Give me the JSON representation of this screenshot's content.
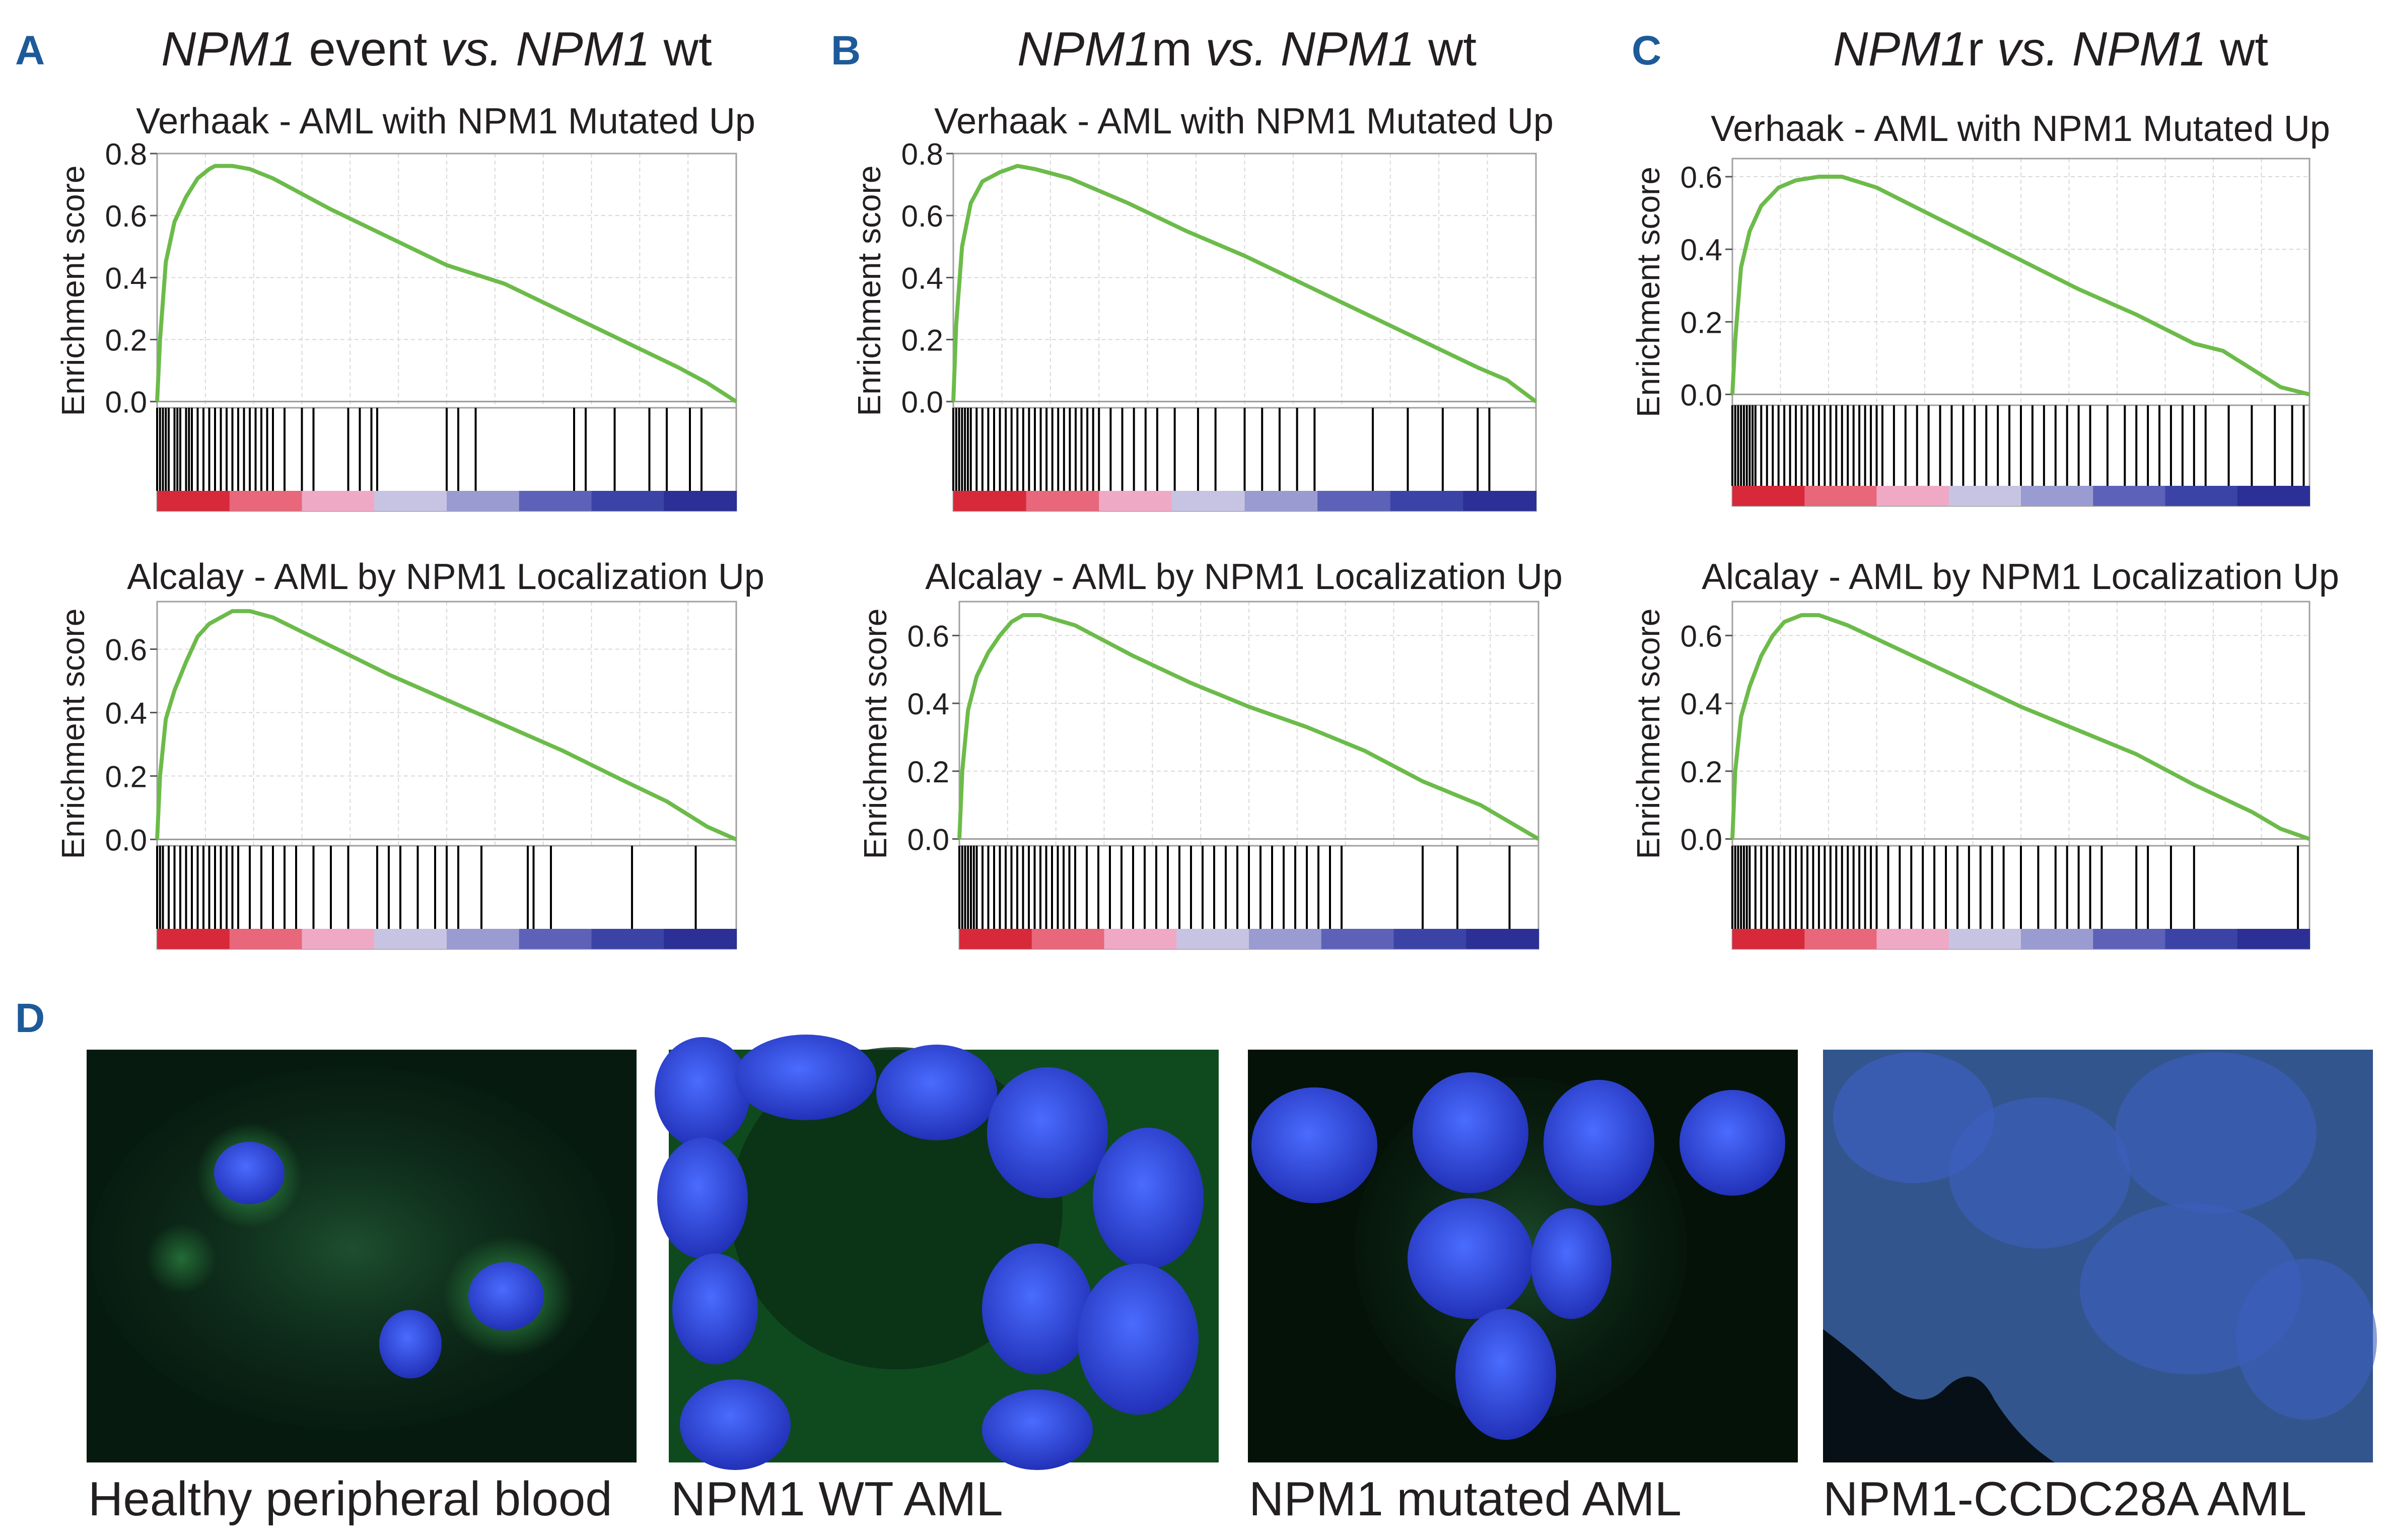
{
  "panels": [
    {
      "letter": "A",
      "title_italic_1": "NPM1",
      "title_plain_1": " event ",
      "title_italic_2": "vs. NPM1",
      "title_plain_2": " wt"
    },
    {
      "letter": "B",
      "title_italic_1": "NPM1",
      "title_plain_1": "m ",
      "title_italic_2": "vs. NPM1",
      "title_plain_2": " wt"
    },
    {
      "letter": "C",
      "title_italic_1": "NPM1",
      "title_plain_1": "r ",
      "title_italic_2": "vs. NPM1",
      "title_plain_2": " wt"
    }
  ],
  "chart_data": [
    {
      "type": "line",
      "panel": "A",
      "title": "Verhaak - AML with NPM1 Mutated Up",
      "ylabel": "Enrichment score",
      "ylim": [
        -0.02,
        0.8
      ],
      "yticks": [
        "0.0",
        "0.2",
        "0.4",
        "0.6",
        "0.8"
      ],
      "ytick_values": [
        0,
        0.2,
        0.4,
        0.6,
        0.8
      ],
      "x": [
        0,
        0.005,
        0.015,
        0.03,
        0.05,
        0.07,
        0.09,
        0.1,
        0.13,
        0.16,
        0.2,
        0.3,
        0.4,
        0.5,
        0.6,
        0.7,
        0.8,
        0.9,
        0.95,
        1.0
      ],
      "y": [
        0,
        0.2,
        0.45,
        0.58,
        0.66,
        0.72,
        0.75,
        0.76,
        0.76,
        0.75,
        0.72,
        0.62,
        0.53,
        0.44,
        0.38,
        0.29,
        0.2,
        0.11,
        0.06,
        0
      ],
      "hits": [
        0,
        0.005,
        0.01,
        0.015,
        0.02,
        0.03,
        0.035,
        0.04,
        0.05,
        0.055,
        0.06,
        0.07,
        0.08,
        0.09,
        0.1,
        0.11,
        0.12,
        0.13,
        0.14,
        0.15,
        0.16,
        0.17,
        0.18,
        0.19,
        0.2,
        0.22,
        0.25,
        0.27,
        0.33,
        0.35,
        0.37,
        0.38,
        0.5,
        0.52,
        0.55,
        0.72,
        0.74,
        0.79,
        0.85,
        0.88,
        0.92,
        0.94
      ]
    },
    {
      "type": "line",
      "panel": "A",
      "title": "Alcalay - AML by NPM1 Localization Up",
      "ylabel": "Enrichment score",
      "ylim": [
        -0.02,
        0.75
      ],
      "yticks": [
        "0.0",
        "0.2",
        "0.4",
        "0.6"
      ],
      "ytick_values": [
        0,
        0.2,
        0.4,
        0.6
      ],
      "x": [
        0,
        0.005,
        0.015,
        0.03,
        0.05,
        0.07,
        0.09,
        0.11,
        0.13,
        0.16,
        0.2,
        0.3,
        0.4,
        0.5,
        0.6,
        0.7,
        0.8,
        0.88,
        0.95,
        1.0
      ],
      "y": [
        0,
        0.2,
        0.38,
        0.47,
        0.56,
        0.64,
        0.68,
        0.7,
        0.72,
        0.72,
        0.7,
        0.61,
        0.52,
        0.44,
        0.36,
        0.28,
        0.19,
        0.12,
        0.04,
        0
      ],
      "hits": [
        0,
        0.005,
        0.01,
        0.02,
        0.03,
        0.04,
        0.05,
        0.06,
        0.07,
        0.08,
        0.09,
        0.1,
        0.11,
        0.12,
        0.13,
        0.14,
        0.16,
        0.18,
        0.2,
        0.22,
        0.24,
        0.27,
        0.3,
        0.33,
        0.38,
        0.4,
        0.42,
        0.45,
        0.48,
        0.5,
        0.52,
        0.56,
        0.64,
        0.65,
        0.68,
        0.82,
        0.93
      ]
    },
    {
      "type": "line",
      "panel": "B",
      "title": "Verhaak - AML with NPM1 Mutated Up",
      "ylabel": "Enrichment score",
      "ylim": [
        -0.02,
        0.8
      ],
      "yticks": [
        "0.0",
        "0.2",
        "0.4",
        "0.6",
        "0.8"
      ],
      "ytick_values": [
        0,
        0.2,
        0.4,
        0.6,
        0.8
      ],
      "x": [
        0,
        0.005,
        0.015,
        0.03,
        0.05,
        0.08,
        0.11,
        0.14,
        0.2,
        0.3,
        0.4,
        0.5,
        0.6,
        0.7,
        0.8,
        0.9,
        0.95,
        1.0
      ],
      "y": [
        0,
        0.25,
        0.5,
        0.64,
        0.71,
        0.74,
        0.76,
        0.75,
        0.72,
        0.64,
        0.55,
        0.47,
        0.38,
        0.29,
        0.2,
        0.11,
        0.07,
        0
      ],
      "hits": [
        0,
        0.005,
        0.01,
        0.015,
        0.02,
        0.025,
        0.03,
        0.04,
        0.05,
        0.06,
        0.07,
        0.08,
        0.09,
        0.1,
        0.11,
        0.12,
        0.13,
        0.14,
        0.15,
        0.16,
        0.17,
        0.18,
        0.19,
        0.2,
        0.21,
        0.22,
        0.23,
        0.24,
        0.25,
        0.27,
        0.29,
        0.31,
        0.33,
        0.35,
        0.38,
        0.42,
        0.45,
        0.5,
        0.53,
        0.56,
        0.59,
        0.62,
        0.72,
        0.78,
        0.84,
        0.9,
        0.92
      ]
    },
    {
      "type": "line",
      "panel": "B",
      "title": "Alcalay - AML by NPM1 Localization Up",
      "ylabel": "Enrichment score",
      "ylim": [
        -0.02,
        0.7
      ],
      "yticks": [
        "0.0",
        "0.2",
        "0.4",
        "0.6"
      ],
      "ytick_values": [
        0,
        0.2,
        0.4,
        0.6
      ],
      "x": [
        0,
        0.005,
        0.015,
        0.03,
        0.05,
        0.07,
        0.09,
        0.11,
        0.14,
        0.2,
        0.3,
        0.4,
        0.5,
        0.6,
        0.7,
        0.8,
        0.9,
        0.95,
        1.0
      ],
      "y": [
        0,
        0.2,
        0.38,
        0.48,
        0.55,
        0.6,
        0.64,
        0.66,
        0.66,
        0.63,
        0.54,
        0.46,
        0.39,
        0.33,
        0.26,
        0.17,
        0.1,
        0.05,
        0
      ],
      "hits": [
        0,
        0.005,
        0.01,
        0.015,
        0.02,
        0.025,
        0.03,
        0.04,
        0.05,
        0.06,
        0.07,
        0.08,
        0.09,
        0.1,
        0.11,
        0.12,
        0.13,
        0.14,
        0.15,
        0.16,
        0.17,
        0.18,
        0.19,
        0.2,
        0.22,
        0.24,
        0.26,
        0.28,
        0.3,
        0.32,
        0.34,
        0.36,
        0.38,
        0.4,
        0.42,
        0.44,
        0.46,
        0.48,
        0.5,
        0.52,
        0.54,
        0.56,
        0.58,
        0.6,
        0.62,
        0.64,
        0.66,
        0.8,
        0.86,
        0.95
      ]
    },
    {
      "type": "line",
      "panel": "C",
      "title": "Verhaak - AML with NPM1 Mutated Up",
      "ylabel": "Enrichment score",
      "ylim": [
        -0.03,
        0.65
      ],
      "yticks": [
        "0.0",
        "0.2",
        "0.4",
        "0.6"
      ],
      "ytick_values": [
        0,
        0.2,
        0.4,
        0.6
      ],
      "x": [
        0,
        0.005,
        0.015,
        0.03,
        0.05,
        0.08,
        0.11,
        0.15,
        0.19,
        0.25,
        0.3,
        0.4,
        0.5,
        0.6,
        0.7,
        0.75,
        0.8,
        0.85,
        0.9,
        0.95,
        1.0
      ],
      "y": [
        0,
        0.15,
        0.35,
        0.45,
        0.52,
        0.57,
        0.59,
        0.6,
        0.6,
        0.57,
        0.53,
        0.45,
        0.37,
        0.29,
        0.22,
        0.18,
        0.14,
        0.12,
        0.07,
        0.02,
        0
      ],
      "hits": [
        0,
        0.005,
        0.01,
        0.015,
        0.02,
        0.025,
        0.03,
        0.035,
        0.04,
        0.05,
        0.06,
        0.07,
        0.08,
        0.09,
        0.1,
        0.11,
        0.12,
        0.13,
        0.14,
        0.15,
        0.16,
        0.17,
        0.18,
        0.19,
        0.2,
        0.21,
        0.22,
        0.23,
        0.24,
        0.25,
        0.26,
        0.28,
        0.3,
        0.32,
        0.34,
        0.36,
        0.38,
        0.4,
        0.42,
        0.44,
        0.46,
        0.48,
        0.5,
        0.52,
        0.54,
        0.56,
        0.58,
        0.6,
        0.62,
        0.65,
        0.68,
        0.7,
        0.72,
        0.74,
        0.76,
        0.78,
        0.8,
        0.82,
        0.86,
        0.9,
        0.94,
        0.97,
        0.99
      ]
    },
    {
      "type": "line",
      "panel": "C",
      "title": "Alcalay - AML by NPM1 Localization Up",
      "ylabel": "Enrichment score",
      "ylim": [
        -0.02,
        0.7
      ],
      "yticks": [
        "0.0",
        "0.2",
        "0.4",
        "0.6"
      ],
      "ytick_values": [
        0,
        0.2,
        0.4,
        0.6
      ],
      "x": [
        0,
        0.005,
        0.015,
        0.03,
        0.05,
        0.07,
        0.09,
        0.12,
        0.15,
        0.2,
        0.3,
        0.4,
        0.5,
        0.6,
        0.7,
        0.8,
        0.9,
        0.95,
        1.0
      ],
      "y": [
        0,
        0.2,
        0.36,
        0.45,
        0.54,
        0.6,
        0.64,
        0.66,
        0.66,
        0.63,
        0.55,
        0.47,
        0.39,
        0.32,
        0.25,
        0.16,
        0.08,
        0.03,
        0
      ],
      "hits": [
        0,
        0.005,
        0.01,
        0.015,
        0.02,
        0.025,
        0.03,
        0.04,
        0.05,
        0.06,
        0.07,
        0.08,
        0.09,
        0.1,
        0.11,
        0.12,
        0.13,
        0.14,
        0.15,
        0.16,
        0.17,
        0.18,
        0.19,
        0.2,
        0.21,
        0.22,
        0.23,
        0.24,
        0.25,
        0.27,
        0.29,
        0.31,
        0.33,
        0.35,
        0.37,
        0.39,
        0.41,
        0.43,
        0.45,
        0.47,
        0.5,
        0.53,
        0.56,
        0.58,
        0.6,
        0.62,
        0.64,
        0.7,
        0.72,
        0.76,
        0.8,
        0.98
      ]
    }
  ],
  "panel_d": {
    "letter": "D",
    "images": [
      {
        "caption": "Healthy peripheral blood"
      },
      {
        "caption": "NPM1 WT AML"
      },
      {
        "caption": "NPM1 mutated AML"
      },
      {
        "caption": "NPM1-CCDC28A AML"
      }
    ]
  },
  "colors": {
    "panel_letter": "#1d5a99",
    "curve": "#6cbb4a",
    "grid": "#d9d9d9",
    "heatbar": [
      "#d8293a",
      "#e8677a",
      "#f0a9c4",
      "#c7c4e3",
      "#9a9bd1",
      "#5d62b8",
      "#3b44a6",
      "#2b2f96"
    ]
  }
}
